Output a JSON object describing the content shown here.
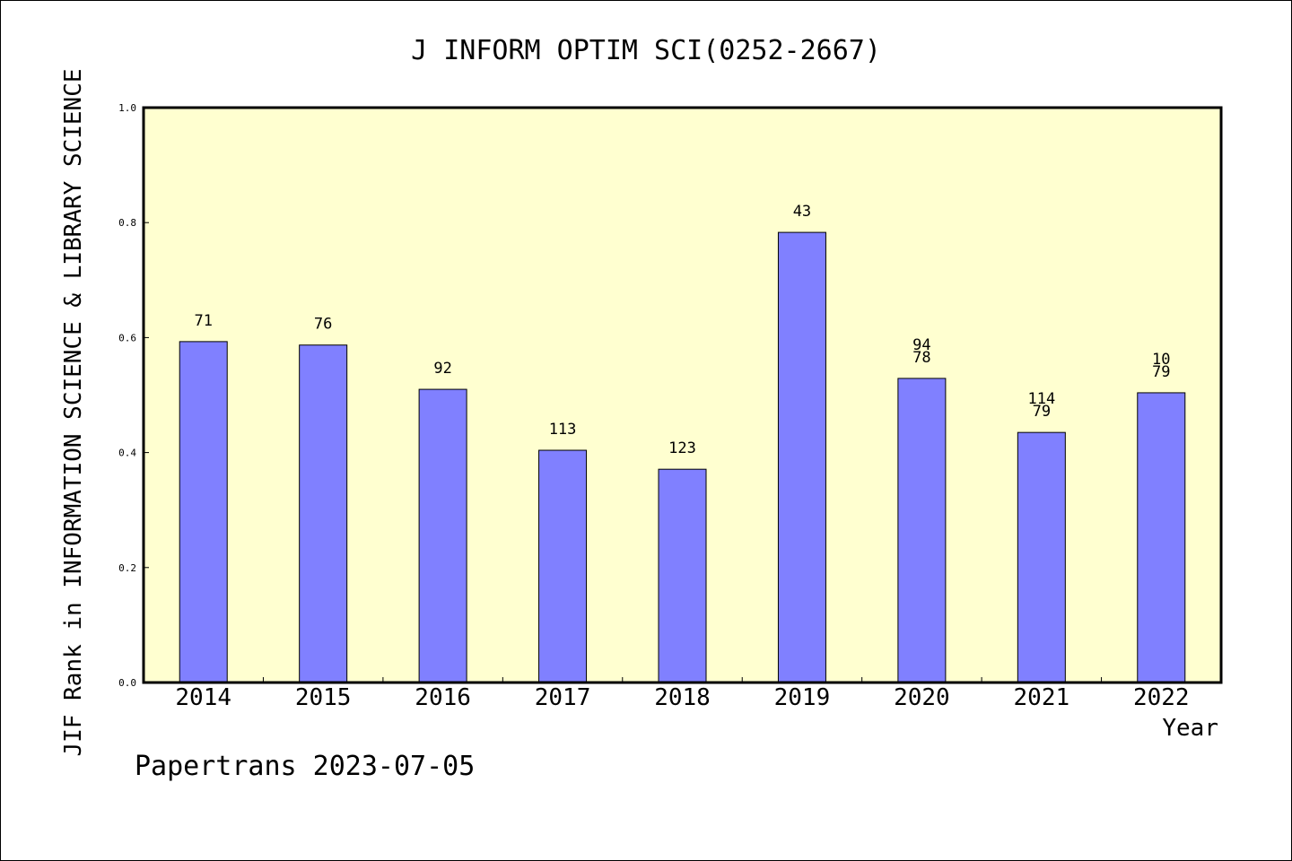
{
  "chart_data": {
    "type": "bar",
    "title": "J INFORM OPTIM SCI(0252-2667)",
    "ylabel": "JIF Rank in INFORMATION SCIENCE & LIBRARY SCIENCE",
    "xlabel": "Year",
    "ylim": [
      0,
      1.0
    ],
    "yticks": [
      "0.0",
      "0.2",
      "0.4",
      "0.6",
      "0.8",
      "1.0"
    ],
    "categories": [
      "2014",
      "2015",
      "2016",
      "2017",
      "2018",
      "2019",
      "2020",
      "2021",
      "2022"
    ],
    "values": [
      0.593,
      0.587,
      0.51,
      0.404,
      0.371,
      0.783,
      0.529,
      0.435,
      0.504
    ],
    "labels": [
      [
        "71"
      ],
      [
        "76"
      ],
      [
        "92"
      ],
      [
        "113"
      ],
      [
        "123"
      ],
      [
        "43"
      ],
      [
        "94",
        "78"
      ],
      [
        "114",
        "79"
      ],
      [
        "10",
        "79"
      ]
    ],
    "bar_color": "#8080ff",
    "plot_background": "#ffffd0",
    "grid": false,
    "legend": "none"
  },
  "footer": "Papertrans 2023-07-05"
}
